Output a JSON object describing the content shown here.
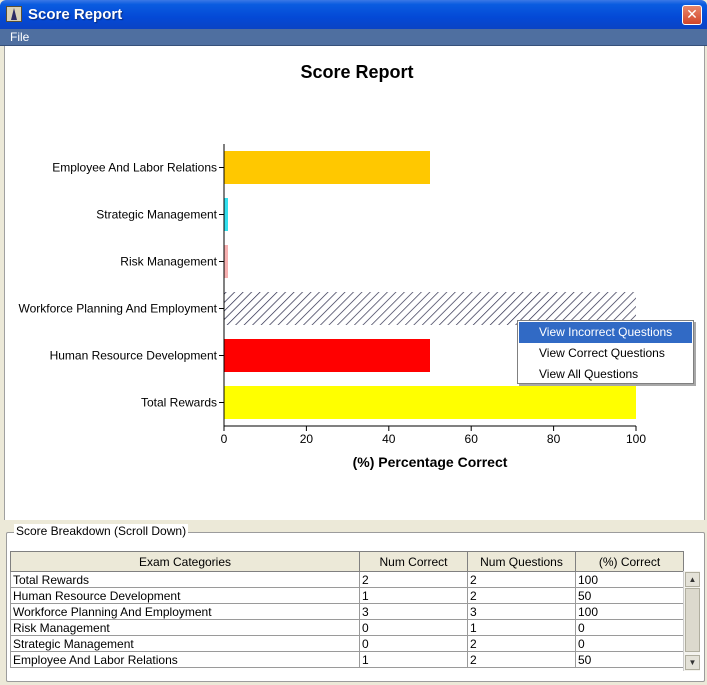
{
  "window": {
    "title": "Score Report",
    "close_glyph": "✕",
    "app_icon": "app-icon"
  },
  "menubar": {
    "items": [
      "File"
    ]
  },
  "chart_data": {
    "type": "bar",
    "orientation": "horizontal",
    "title": "Score Report",
    "xlabel": "(%) Percentage Correct",
    "ylabel": "",
    "xlim": [
      0,
      100
    ],
    "xticks": [
      0,
      20,
      40,
      60,
      80,
      100
    ],
    "categories": [
      "Employee And Labor Relations",
      "Strategic Management",
      "Risk Management",
      "Workforce Planning And Employment",
      "Human Resource Development",
      "Total Rewards"
    ],
    "values": [
      50,
      0,
      0,
      100,
      50,
      100
    ],
    "colors": [
      "#ffc800",
      "#33e0ee",
      "#f7b0b0",
      "hatch",
      "#ff0000",
      "#ffff00"
    ],
    "grid": false,
    "legend": "none"
  },
  "popup_menu": {
    "items": [
      {
        "label": "View Incorrect Questions",
        "selected": true
      },
      {
        "label": "View Correct Questions",
        "selected": false
      },
      {
        "label": "View All Questions",
        "selected": false
      }
    ]
  },
  "breakdown": {
    "title": "Score Breakdown (Scroll Down)",
    "columns": [
      "Exam Categories",
      "Num Correct",
      "Num Questions",
      "(%) Correct"
    ],
    "rows": [
      [
        "Total Rewards",
        "2",
        "2",
        "100"
      ],
      [
        "Human Resource Development",
        "1",
        "2",
        "50"
      ],
      [
        "Workforce Planning And Employment",
        "3",
        "3",
        "100"
      ],
      [
        "Risk Management",
        "0",
        "1",
        "0"
      ],
      [
        "Strategic Management",
        "0",
        "2",
        "0"
      ],
      [
        "Employee And Labor Relations",
        "1",
        "2",
        "50"
      ]
    ],
    "scroll_up_glyph": "▲",
    "scroll_down_glyph": "▼"
  }
}
